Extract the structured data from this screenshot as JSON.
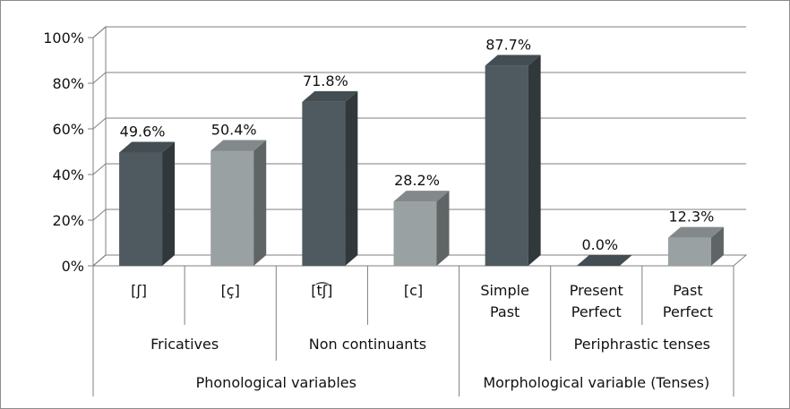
{
  "chart_data": {
    "type": "bar",
    "style": "3d-column",
    "categories": [
      "[ʃ]",
      "[ç]",
      "[t͡ʃ]",
      "[c]",
      "Simple\nPast",
      "Present\nPerfect",
      "Past\nPerfect"
    ],
    "values": [
      49.6,
      50.4,
      71.8,
      28.2,
      87.7,
      0.0,
      12.3
    ],
    "data_labels": [
      "49.6%",
      "50.4%",
      "71.8%",
      "28.2%",
      "87.7%",
      "0.0%",
      "12.3%"
    ],
    "bar_colors": [
      "#4f5a60",
      "#9aa1a3",
      "#4f5a60",
      "#9aa1a3",
      "#4f5a60",
      "#4f5a60",
      "#9aa1a3"
    ],
    "ylim": [
      0,
      100
    ],
    "y_ticks": [
      0,
      20,
      40,
      60,
      80,
      100
    ],
    "y_tick_labels": [
      "0%",
      "20%",
      "40%",
      "60%",
      "80%",
      "100%"
    ],
    "grid": true,
    "legend": "none",
    "title": "",
    "xlabel": "",
    "ylabel": "",
    "group_levels": [
      [
        {
          "label": "Fricatives",
          "span": [
            0,
            1
          ]
        },
        {
          "label": "Non continuants",
          "span": [
            2,
            3
          ]
        },
        {
          "label": "",
          "span": [
            4,
            4
          ]
        },
        {
          "label": "Periphrastic tenses",
          "span": [
            5,
            6
          ]
        }
      ],
      [
        {
          "label": "Phonological variables",
          "span": [
            0,
            3
          ]
        },
        {
          "label": "Morphological variable (Tenses)",
          "span": [
            4,
            6
          ]
        }
      ]
    ]
  }
}
